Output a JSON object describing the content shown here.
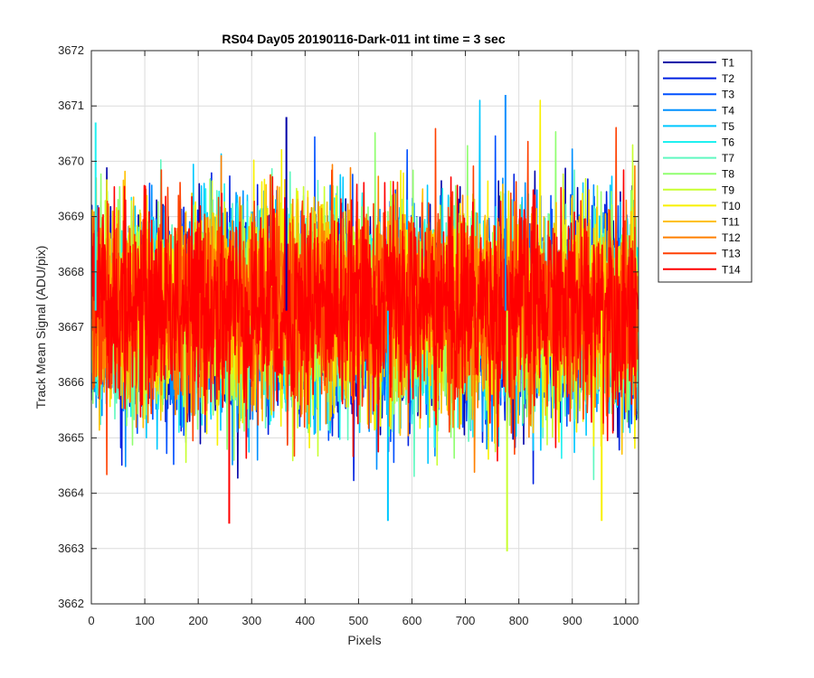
{
  "chart_data": {
    "type": "line",
    "title": "RS04 Day05 20190116-Dark-011 int time = 3 sec",
    "xlabel": "Pixels",
    "ylabel": "Track Mean Signal (ADU/pix)",
    "xlim": [
      0,
      1024
    ],
    "ylim": [
      3662,
      3672
    ],
    "xticks": [
      0,
      100,
      200,
      300,
      400,
      500,
      600,
      700,
      800,
      900,
      1000
    ],
    "yticks": [
      3662,
      3663,
      3664,
      3665,
      3666,
      3667,
      3668,
      3669,
      3670,
      3671,
      3672
    ],
    "grid": true,
    "legend_position": "outside-top-right",
    "n_points": 1024,
    "series_mean": 3667.3,
    "series_std": 0.9,
    "notable_extremes": [
      {
        "x": 775,
        "y": 3671.2
      },
      {
        "x": 778,
        "y": 3662.95
      },
      {
        "x": 258,
        "y": 3663.45
      },
      {
        "x": 555,
        "y": 3663.5
      },
      {
        "x": 955,
        "y": 3663.5
      },
      {
        "x": 365,
        "y": 3670.8
      },
      {
        "x": 8,
        "y": 3670.7
      }
    ],
    "series": [
      {
        "name": "T1",
        "color": "#0000a8"
      },
      {
        "name": "T2",
        "color": "#0020e0"
      },
      {
        "name": "T3",
        "color": "#0050ff"
      },
      {
        "name": "T4",
        "color": "#0090ff"
      },
      {
        "name": "T5",
        "color": "#00c8ff"
      },
      {
        "name": "T6",
        "color": "#20f0f0"
      },
      {
        "name": "T7",
        "color": "#60f8c0"
      },
      {
        "name": "T8",
        "color": "#90ff70"
      },
      {
        "name": "T9",
        "color": "#c8ff30"
      },
      {
        "name": "T10",
        "color": "#f8f000"
      },
      {
        "name": "T11",
        "color": "#ffc000"
      },
      {
        "name": "T12",
        "color": "#ff8000"
      },
      {
        "name": "T13",
        "color": "#ff4000"
      },
      {
        "name": "T14",
        "color": "#ff0000"
      }
    ]
  }
}
